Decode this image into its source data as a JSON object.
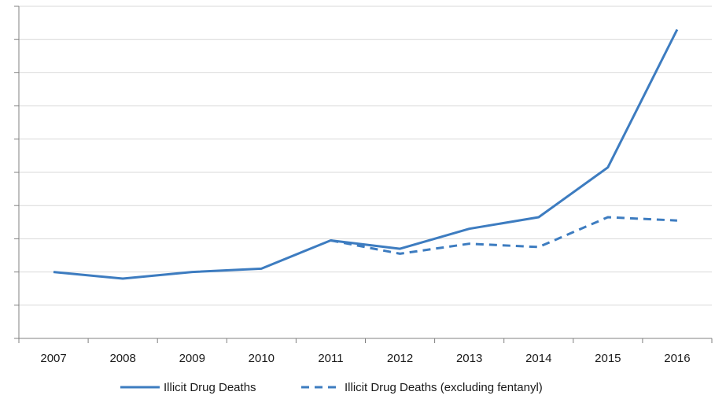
{
  "chart_data": {
    "type": "line",
    "title": "",
    "xlabel": "",
    "ylabel": "",
    "x": [
      "2007",
      "2008",
      "2009",
      "2010",
      "2011",
      "2012",
      "2013",
      "2014",
      "2015",
      "2016"
    ],
    "ylim": [
      0,
      10
    ],
    "y_ticks": [
      0,
      1,
      2,
      3,
      4,
      5,
      6,
      7,
      8,
      9,
      10
    ],
    "y_tick_labels_shown": false,
    "grid": "horizontal",
    "legend_position": "bottom",
    "series": [
      {
        "name": "Illicit Drug Deaths",
        "style": "solid",
        "color": "#3d7cc0",
        "x": [
          "2007",
          "2008",
          "2009",
          "2010",
          "2011",
          "2012",
          "2013",
          "2014",
          "2015",
          "2016"
        ],
        "values": [
          2.0,
          1.8,
          2.0,
          2.1,
          2.95,
          2.7,
          3.3,
          3.65,
          5.15,
          9.3
        ]
      },
      {
        "name": "Illicit Drug Deaths (excluding fentanyl)",
        "style": "dashed",
        "color": "#3d7cc0",
        "x": [
          "2011",
          "2012",
          "2013",
          "2014",
          "2015",
          "2016"
        ],
        "values": [
          2.95,
          2.55,
          2.85,
          2.75,
          3.65,
          3.55
        ]
      }
    ]
  }
}
